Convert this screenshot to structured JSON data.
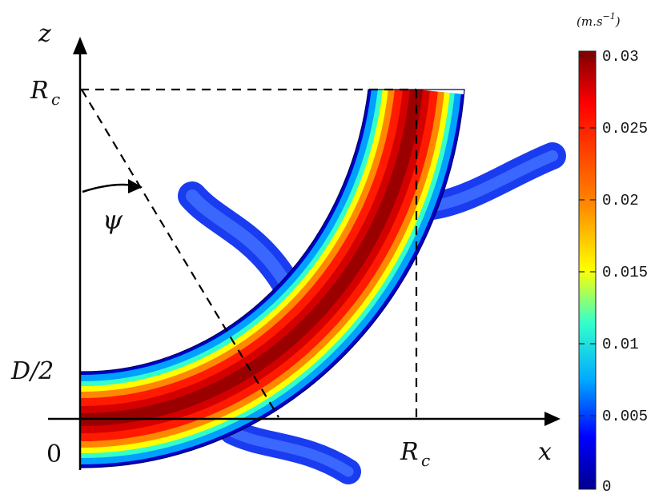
{
  "diagram": {
    "axes": {
      "x_label": "x",
      "z_label": "z",
      "origin_label": "0",
      "d_half_label": "D/2",
      "rc_x_label": "R",
      "rc_x_sub": "c",
      "rc_z_label": "R",
      "rc_z_sub": "c",
      "angle_label": "ψ"
    },
    "colorbar": {
      "unit": "(m.s",
      "unit_exp": "−1",
      "unit_close": ")",
      "ticks": [
        "0.03",
        "0.025",
        "0.02",
        "0.015",
        "0.01",
        "0.005",
        "0"
      ],
      "colors": [
        "#7f0000",
        "#ff0000",
        "#ff8800",
        "#ffff00",
        "#33ffcc",
        "#00aaff",
        "#0000ff",
        "#00008f"
      ]
    }
  }
}
